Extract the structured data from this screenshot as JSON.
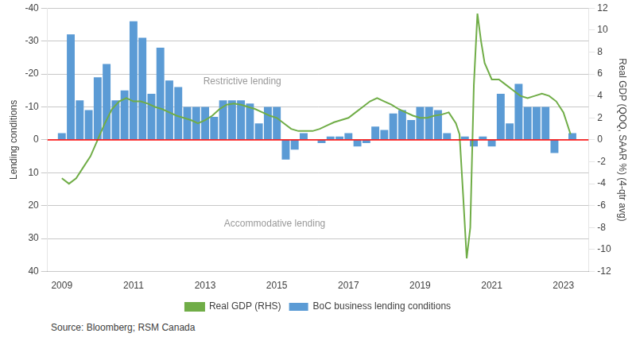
{
  "chart_data": {
    "type": "bar",
    "y_label": "Lending conditions",
    "y2_label": "Real GDP (QOQ, SAAR %) (4-qtr avg)",
    "source": "Source: Bloomberg; RSM Canada",
    "annotations": [
      "Accommodative lending",
      "Restrictive lending"
    ],
    "reference_lines": [
      {
        "axis": "y",
        "value": 0,
        "color": "#FF0000"
      }
    ],
    "xlim": [
      2008.6,
      2023.7
    ],
    "xticks": [
      2009,
      2011,
      2013,
      2015,
      2017,
      2019,
      2021,
      2023
    ],
    "ylim": [
      40,
      -40
    ],
    "yticks": [
      40,
      30,
      20,
      10,
      0,
      -10,
      -20,
      -30,
      -40
    ],
    "y2lim": [
      -12,
      12
    ],
    "y2ticks": [
      -12,
      -10,
      -8,
      -6,
      -4,
      -2,
      0,
      2,
      4,
      6,
      8,
      10,
      12
    ],
    "grid": true,
    "legend": "bottom",
    "series": [
      {
        "name": "BoC business lending conditions",
        "type": "bar",
        "color": "#5B9BD5",
        "x": [
          2009.0,
          2009.25,
          2009.5,
          2009.75,
          2010.0,
          2010.25,
          2010.5,
          2010.75,
          2011.0,
          2011.25,
          2011.5,
          2011.75,
          2012.0,
          2012.25,
          2012.5,
          2012.75,
          2013.0,
          2013.25,
          2013.5,
          2013.75,
          2014.0,
          2014.25,
          2014.5,
          2014.75,
          2015.0,
          2015.25,
          2015.5,
          2015.75,
          2016.0,
          2016.25,
          2016.5,
          2016.75,
          2017.0,
          2017.25,
          2017.5,
          2017.75,
          2018.0,
          2018.25,
          2018.5,
          2018.75,
          2019.0,
          2019.25,
          2019.5,
          2019.75,
          2020.0,
          2020.25,
          2020.5,
          2020.75,
          2021.0,
          2021.25,
          2021.5,
          2021.75,
          2022.0,
          2022.25,
          2022.5,
          2022.75,
          2023.0,
          2023.25
        ],
        "values": [
          -2,
          -32,
          -12,
          -9,
          -19,
          -23,
          -12,
          -15,
          -36,
          -31,
          -14,
          -28,
          -18,
          -16,
          -10,
          -10,
          -10,
          -7,
          -12,
          -12,
          -12,
          -11,
          -5,
          -10,
          -10,
          6,
          3,
          -2,
          0,
          1,
          -1,
          -1,
          -2,
          2,
          1,
          -4,
          -3,
          -8,
          -9,
          -6,
          -10,
          -10,
          -9,
          -2,
          0,
          -1,
          2,
          -1,
          2,
          -14,
          -5,
          -17,
          -10,
          -10,
          -10,
          4,
          0,
          -2
        ]
      },
      {
        "name": "Real GDP (RHS)",
        "type": "line",
        "color": "#70AD47",
        "axis": "y2",
        "x": [
          2009.0,
          2009.2,
          2009.4,
          2009.6,
          2009.8,
          2010.0,
          2010.2,
          2010.4,
          2010.6,
          2010.8,
          2011.0,
          2011.2,
          2011.4,
          2011.6,
          2011.8,
          2012.0,
          2012.2,
          2012.4,
          2012.6,
          2012.8,
          2013.0,
          2013.2,
          2013.4,
          2013.6,
          2013.8,
          2014.0,
          2014.2,
          2014.4,
          2014.6,
          2014.8,
          2015.0,
          2015.2,
          2015.4,
          2015.6,
          2015.8,
          2016.0,
          2016.2,
          2016.4,
          2016.6,
          2016.8,
          2017.0,
          2017.2,
          2017.4,
          2017.6,
          2017.8,
          2018.0,
          2018.2,
          2018.4,
          2018.6,
          2018.8,
          2019.0,
          2019.2,
          2019.4,
          2019.6,
          2019.8,
          2020.0,
          2020.1,
          2020.2,
          2020.3,
          2020.4,
          2020.5,
          2020.6,
          2020.7,
          2020.8,
          2021.0,
          2021.2,
          2021.4,
          2021.6,
          2021.8,
          2022.0,
          2022.2,
          2022.4,
          2022.6,
          2022.8,
          2023.0,
          2023.2
        ],
        "values": [
          -3.5,
          -4.0,
          -3.5,
          -2.5,
          -1.5,
          0.0,
          1.5,
          2.8,
          3.5,
          3.8,
          3.5,
          3.5,
          3.3,
          3.0,
          2.8,
          2.5,
          2.2,
          2.0,
          1.8,
          1.5,
          1.8,
          2.2,
          2.8,
          3.2,
          3.3,
          3.2,
          3.0,
          2.8,
          2.5,
          2.2,
          2.0,
          1.5,
          1.0,
          0.8,
          0.8,
          0.8,
          1.0,
          1.3,
          1.6,
          1.8,
          2.0,
          2.5,
          3.0,
          3.5,
          3.8,
          3.5,
          3.2,
          2.8,
          2.5,
          2.2,
          2.0,
          2.0,
          2.2,
          2.3,
          2.5,
          1.5,
          0.5,
          -5.0,
          -10.8,
          -8.0,
          5.0,
          11.5,
          9.0,
          7.0,
          5.5,
          5.5,
          5.0,
          4.5,
          4.0,
          3.8,
          4.0,
          4.2,
          4.0,
          3.5,
          2.5,
          0.5
        ]
      }
    ]
  }
}
